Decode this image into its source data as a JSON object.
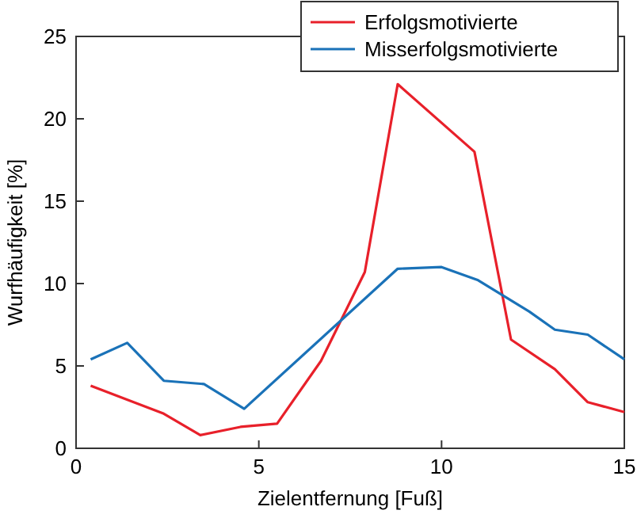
{
  "chart_data": {
    "type": "line",
    "xlabel": "Zielentfernung [Fuß]",
    "ylabel": "Wurfhäufigkeit [%]",
    "xlim": [
      0,
      15
    ],
    "xticks": [
      0,
      5,
      10,
      15
    ],
    "ylim": [
      0,
      25
    ],
    "yticks": [
      0,
      5,
      10,
      15,
      20,
      25
    ],
    "grid": false,
    "legend": "top right",
    "marker": "none",
    "line_style": "solid",
    "series": [
      {
        "name": "Erfolgsmotivierte",
        "color": "#e8202a",
        "x": [
          0.4,
          2.4,
          3.4,
          4.5,
          5.5,
          6.7,
          7.9,
          8.8,
          10.9,
          11.9,
          13.1,
          14.0,
          15
        ],
        "values": [
          3.8,
          2.1,
          0.8,
          1.3,
          1.5,
          5.3,
          10.7,
          22.1,
          18.0,
          6.6,
          4.8,
          2.8,
          2.2
        ]
      },
      {
        "name": "Misserfolgsmotivierte",
        "color": "#1a72b8",
        "x": [
          0.4,
          1.4,
          2.4,
          3.5,
          4.6,
          8.8,
          10.0,
          11.0,
          12.4,
          13.1,
          14.0,
          15
        ],
        "values": [
          5.4,
          6.4,
          4.1,
          3.9,
          2.4,
          10.9,
          11.0,
          10.2,
          8.3,
          7.2,
          6.9,
          5.4
        ]
      }
    ]
  }
}
